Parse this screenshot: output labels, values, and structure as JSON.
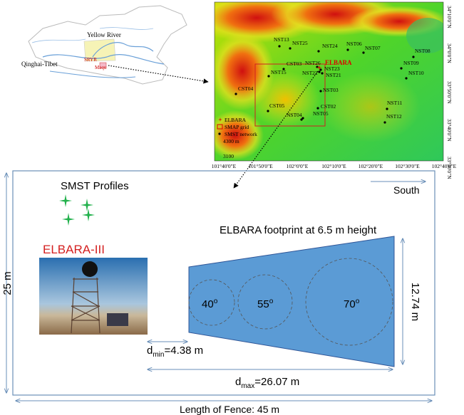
{
  "china_map": {
    "labels": [
      "Yellow River",
      "Qinghai-Tibet",
      "SRYR",
      "Maqu"
    ]
  },
  "terrain_map": {
    "stations": [
      "NST13",
      "NST25",
      "NST24",
      "NST06",
      "NST07",
      "NST08",
      "NST09",
      "NST10",
      "NST26",
      "NST23",
      "NST22",
      "NST21",
      "NST15",
      "CST03",
      "CST04",
      "NST03",
      "CST05",
      "CST02",
      "NST04",
      "NST05",
      "NST11",
      "NST12"
    ],
    "elbara_label": "ELBARA",
    "legend": [
      "ELBARA",
      "SMAP grid",
      "SMST network",
      "4300 m",
      "3100"
    ],
    "lat_labels": [
      "34°10'0\"N",
      "34°0'0\"N",
      "33°50'0\"N",
      "33°40'0\"N",
      "33°30'0\"N"
    ],
    "lon_labels": [
      "101°40'0\"E",
      "101°50'0\"E",
      "102°0'0\"E",
      "102°10'0\"E",
      "102°20'0\"E",
      "102°30'0\"E",
      "102°40'0\"E"
    ]
  },
  "diagram": {
    "smst_profiles": "SMST Profiles",
    "south": "South",
    "instrument": "ELBARA-III",
    "footprint_title": "ELBARA footprint at 6.5 m height",
    "width_label": "25 m",
    "footprint_width": "12.74 m",
    "angles": [
      {
        "value": "40",
        "sup": "o"
      },
      {
        "value": "55",
        "sup": "o"
      },
      {
        "value": "70",
        "sup": "o"
      }
    ],
    "dmin": {
      "symbol": "d",
      "sub": "min",
      "rest": "=4.38 m"
    },
    "dmax": {
      "symbol": "d",
      "sub": "max",
      "rest": "=26.07 m"
    },
    "fence": "Length of Fence: 45 m"
  }
}
